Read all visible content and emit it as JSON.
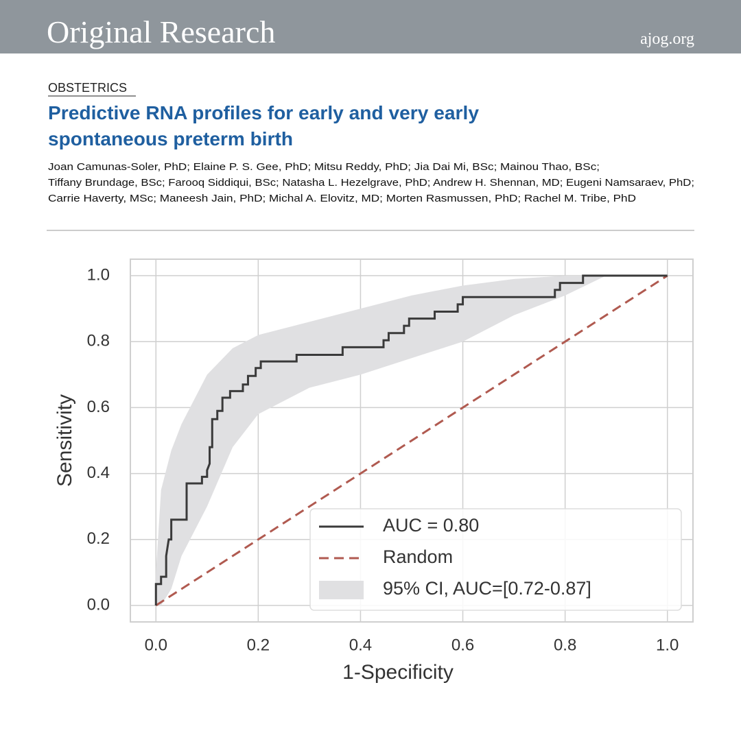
{
  "header": {
    "title": "Original Research",
    "site": "ajog.org"
  },
  "article": {
    "section": "OBSTETRICS",
    "title_lines": [
      "Predictive RNA profiles for early and very early",
      "spontaneous preterm birth"
    ],
    "author_lines": [
      "Joan Camunas-Soler, PhD; Elaine P. S. Gee, PhD; Mitsu Reddy, PhD; Jia Dai Mi, BSc; Mainou Thao, BSc;",
      "Tiffany Brundage, BSc; Farooq Siddiqui, BSc; Natasha L. Hezelgrave, PhD; Andrew H. Shennan, MD; Eugeni Namsaraev, PhD;",
      "Carrie Haverty, MSc; Maneesh Jain, PhD; Michal A. Elovitz, MD; Morten Rasmussen, PhD; Rachel M. Tribe, PhD"
    ]
  },
  "chart_data": {
    "type": "line",
    "x_label": "1-Specificity",
    "y_label": "Sensitivity",
    "xlim": [
      -0.05,
      1.05
    ],
    "ylim": [
      -0.05,
      1.05
    ],
    "xticks": [
      {
        "value": 0,
        "label": "0.0"
      },
      0.2,
      0.4,
      0.6,
      0.8,
      {
        "value": 1,
        "label": "1.0"
      }
    ],
    "yticks": [
      {
        "value": 0,
        "label": "0.0"
      },
      0.2,
      0.4,
      0.6,
      0.8,
      {
        "value": 1,
        "label": "1.0"
      }
    ],
    "grid": true,
    "legend": "lower right",
    "series": [
      {
        "name": "AUC = 0.80",
        "color": "#3a3a3a",
        "style": "solid",
        "x": [
          0,
          0,
          0.01,
          0.01,
          0.02,
          0.02,
          0.025,
          0.03,
          0.03,
          0.06,
          0.06,
          0.09,
          0.09,
          0.1,
          0.1,
          0.105,
          0.105,
          0.11,
          0.11,
          0.12,
          0.12,
          0.13,
          0.13,
          0.145,
          0.145,
          0.17,
          0.17,
          0.18,
          0.18,
          0.195,
          0.195,
          0.205,
          0.205,
          0.275,
          0.275,
          0.365,
          0.365,
          0.445,
          0.445,
          0.455,
          0.455,
          0.485,
          0.485,
          0.495,
          0.495,
          0.545,
          0.545,
          0.59,
          0.59,
          0.6,
          0.6,
          0.78,
          0.78,
          0.79,
          0.79,
          0.835,
          0.835,
          1.0
        ],
        "values": [
          0,
          0.065,
          0.065,
          0.087,
          0.087,
          0.15,
          0.2,
          0.2,
          0.26,
          0.26,
          0.37,
          0.37,
          0.39,
          0.39,
          0.41,
          0.43,
          0.48,
          0.48,
          0.565,
          0.565,
          0.59,
          0.59,
          0.63,
          0.63,
          0.65,
          0.65,
          0.67,
          0.67,
          0.696,
          0.696,
          0.72,
          0.72,
          0.74,
          0.74,
          0.76,
          0.76,
          0.783,
          0.783,
          0.804,
          0.804,
          0.826,
          0.826,
          0.848,
          0.848,
          0.87,
          0.87,
          0.891,
          0.891,
          0.913,
          0.913,
          0.935,
          0.935,
          0.957,
          0.957,
          0.978,
          0.978,
          1.0,
          1.0
        ]
      },
      {
        "name": "Random",
        "color": "#b05a50",
        "style": "dashed",
        "x": [
          0,
          1
        ],
        "values": [
          0,
          1
        ]
      },
      {
        "name": "95% CI, AUC=[0.72-0.87]",
        "color": "#e0e0e2",
        "style": "band",
        "x": [
          0,
          0.01,
          0.03,
          0.05,
          0.1,
          0.15,
          0.2,
          0.3,
          0.4,
          0.5,
          0.6,
          0.7,
          0.8,
          0.88
        ],
        "lower": [
          0,
          0,
          0.05,
          0.15,
          0.3,
          0.48,
          0.58,
          0.66,
          0.7,
          0.75,
          0.8,
          0.88,
          0.94,
          1.0
        ],
        "upper": [
          0.1,
          0.35,
          0.47,
          0.55,
          0.7,
          0.78,
          0.82,
          0.86,
          0.9,
          0.94,
          0.97,
          0.99,
          1.0,
          1.0
        ]
      }
    ]
  }
}
